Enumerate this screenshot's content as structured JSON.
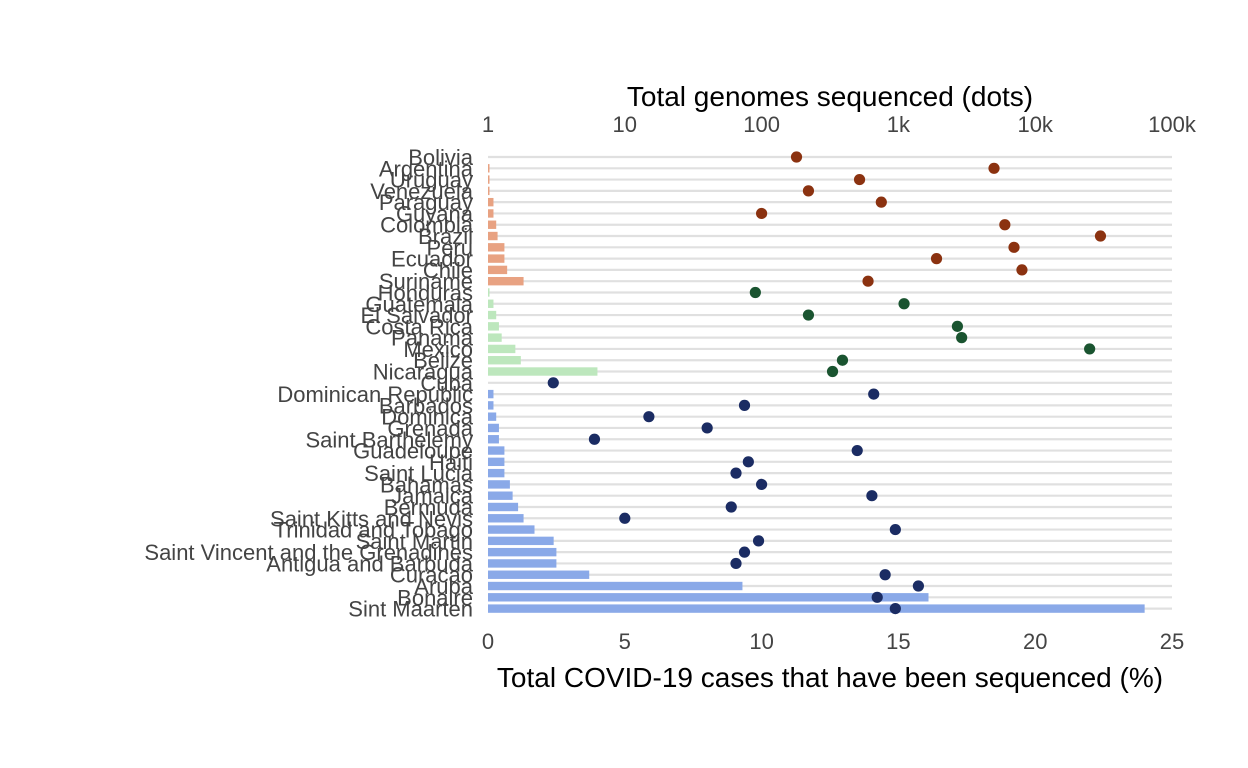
{
  "chart_data": {
    "type": "bar",
    "xlabel": "Total COVID-19 cases that have been sequenced (%)",
    "x2label": "Total genomes sequenced (dots)",
    "xlim": [
      0,
      25
    ],
    "x_ticks": [
      0,
      5,
      10,
      15,
      20,
      25
    ],
    "x2_scale": "log10",
    "x2lim": [
      1,
      100000
    ],
    "x2_ticks": [
      1,
      10,
      100,
      1000,
      10000,
      100000
    ],
    "x2_tick_labels": [
      "1",
      "10",
      "100",
      "1k",
      "10k",
      "100k"
    ],
    "grid": true,
    "colors": {
      "south_america_bar": "#e8a282",
      "south_america_dot": "#8b3210",
      "central_america_bar": "#bde7bd",
      "central_america_dot": "#1a5430",
      "caribbean_bar": "#8aa9e8",
      "caribbean_dot": "#1b2c63",
      "gridline": "#e0e0e0"
    },
    "categories": [
      {
        "name": "Bolivia",
        "region": "south_america",
        "pct": 0.0,
        "genomes": 180
      },
      {
        "name": "Argentina",
        "region": "south_america",
        "pct": 0.05,
        "genomes": 5000
      },
      {
        "name": "Uruguay",
        "region": "south_america",
        "pct": 0.05,
        "genomes": 520
      },
      {
        "name": "Venezuela",
        "region": "south_america",
        "pct": 0.05,
        "genomes": 220
      },
      {
        "name": "Paraguay",
        "region": "south_america",
        "pct": 0.2,
        "genomes": 750
      },
      {
        "name": "Guyana",
        "region": "south_america",
        "pct": 0.2,
        "genomes": 100
      },
      {
        "name": "Colombia",
        "region": "south_america",
        "pct": 0.3,
        "genomes": 6000
      },
      {
        "name": "Brazil",
        "region": "south_america",
        "pct": 0.35,
        "genomes": 30000
      },
      {
        "name": "Peru",
        "region": "south_america",
        "pct": 0.6,
        "genomes": 7000
      },
      {
        "name": "Ecuador",
        "region": "south_america",
        "pct": 0.6,
        "genomes": 1900
      },
      {
        "name": "Chile",
        "region": "south_america",
        "pct": 0.7,
        "genomes": 8000
      },
      {
        "name": "Suriname",
        "region": "south_america",
        "pct": 1.3,
        "genomes": 600
      },
      {
        "name": "Honduras",
        "region": "central_america",
        "pct": 0.05,
        "genomes": 90
      },
      {
        "name": "Guatemala",
        "region": "central_america",
        "pct": 0.2,
        "genomes": 1100
      },
      {
        "name": "El Salvador",
        "region": "central_america",
        "pct": 0.3,
        "genomes": 220
      },
      {
        "name": "Costa Rica",
        "region": "central_america",
        "pct": 0.4,
        "genomes": 2700
      },
      {
        "name": "Panama",
        "region": "central_america",
        "pct": 0.5,
        "genomes": 2900
      },
      {
        "name": "Mexico",
        "region": "central_america",
        "pct": 1.0,
        "genomes": 25000
      },
      {
        "name": "Belize",
        "region": "central_america",
        "pct": 1.2,
        "genomes": 390
      },
      {
        "name": "Nicaragua",
        "region": "central_america",
        "pct": 4.0,
        "genomes": 330
      },
      {
        "name": "Cuba",
        "region": "caribbean",
        "pct": 0.0,
        "genomes": 3
      },
      {
        "name": "Dominican Republic",
        "region": "caribbean",
        "pct": 0.2,
        "genomes": 660
      },
      {
        "name": "Barbados",
        "region": "caribbean",
        "pct": 0.2,
        "genomes": 75
      },
      {
        "name": "Dominica",
        "region": "caribbean",
        "pct": 0.3,
        "genomes": 15
      },
      {
        "name": "Grenada",
        "region": "caribbean",
        "pct": 0.4,
        "genomes": 40
      },
      {
        "name": "Saint Barthelemy",
        "region": "caribbean",
        "pct": 0.4,
        "genomes": 6
      },
      {
        "name": "Guadeloupe",
        "region": "caribbean",
        "pct": 0.6,
        "genomes": 500
      },
      {
        "name": "Haiti",
        "region": "caribbean",
        "pct": 0.6,
        "genomes": 80
      },
      {
        "name": "Saint Lucia",
        "region": "caribbean",
        "pct": 0.6,
        "genomes": 65
      },
      {
        "name": "Bahamas",
        "region": "caribbean",
        "pct": 0.8,
        "genomes": 100
      },
      {
        "name": "Jamaica",
        "region": "caribbean",
        "pct": 0.9,
        "genomes": 640
      },
      {
        "name": "Bermuda",
        "region": "caribbean",
        "pct": 1.1,
        "genomes": 60
      },
      {
        "name": "Saint Kitts and Nevis",
        "region": "caribbean",
        "pct": 1.3,
        "genomes": 10
      },
      {
        "name": "Trinidad and Tobago",
        "region": "caribbean",
        "pct": 1.7,
        "genomes": 950
      },
      {
        "name": "Saint Martin",
        "region": "caribbean",
        "pct": 2.4,
        "genomes": 95
      },
      {
        "name": "Saint Vincent and the Grenadines",
        "region": "caribbean",
        "pct": 2.5,
        "genomes": 75
      },
      {
        "name": "Antigua and Barbuda",
        "region": "caribbean",
        "pct": 2.5,
        "genomes": 65
      },
      {
        "name": "Curacao",
        "region": "caribbean",
        "pct": 3.7,
        "genomes": 800
      },
      {
        "name": "Aruba",
        "region": "caribbean",
        "pct": 9.3,
        "genomes": 1400
      },
      {
        "name": "Bonaire",
        "region": "caribbean",
        "pct": 16.1,
        "genomes": 700
      },
      {
        "name": "Sint Maarten",
        "region": "caribbean",
        "pct": 24.0,
        "genomes": 950
      }
    ]
  }
}
